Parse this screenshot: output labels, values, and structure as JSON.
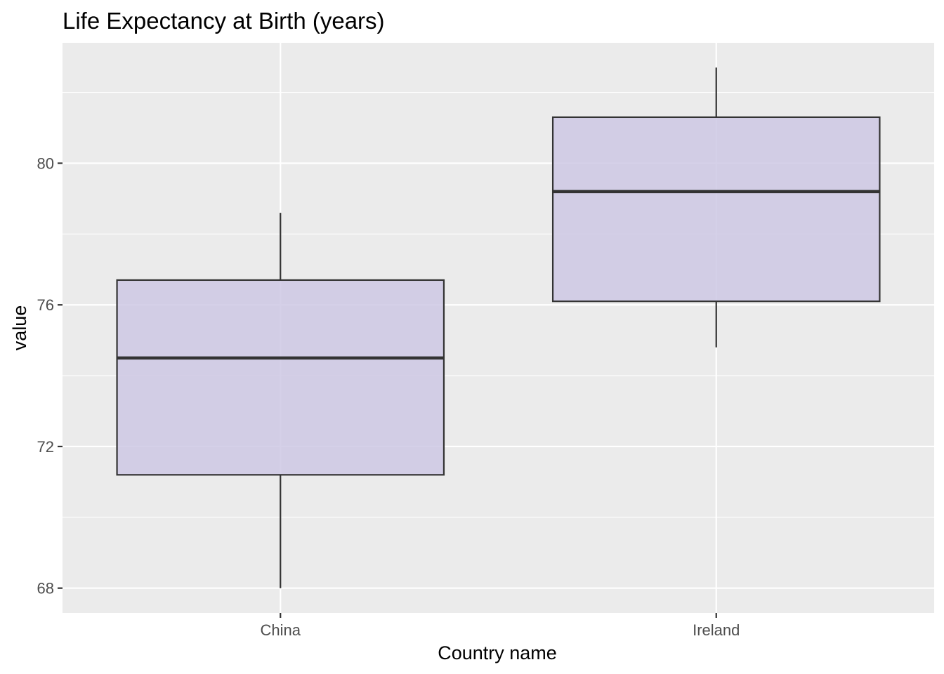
{
  "chart_data": {
    "type": "box",
    "title": "Life Expectancy at Birth (years)",
    "xlabel": "Country name",
    "ylabel": "value",
    "categories": [
      "China",
      "Ireland"
    ],
    "ylim": [
      67.3,
      83.4
    ],
    "yticks": [
      68,
      72,
      76,
      80
    ],
    "ytick_labels": [
      "68",
      "72",
      "76",
      "80"
    ],
    "grid": true,
    "legend": "none",
    "boxes": [
      {
        "category": "China",
        "min": 68.0,
        "q1": 71.2,
        "median": 74.5,
        "q3": 76.7,
        "max": 78.6
      },
      {
        "category": "Ireland",
        "min": 74.8,
        "q1": 76.1,
        "median": 79.2,
        "q3": 81.3,
        "max": 82.7
      }
    ],
    "colors": {
      "panel_background": "#ebebeb",
      "grid_major": "#ffffff",
      "box_fill": "#cec8e4",
      "box_outline": "#333333",
      "tick_text": "#4d4d4d"
    }
  }
}
